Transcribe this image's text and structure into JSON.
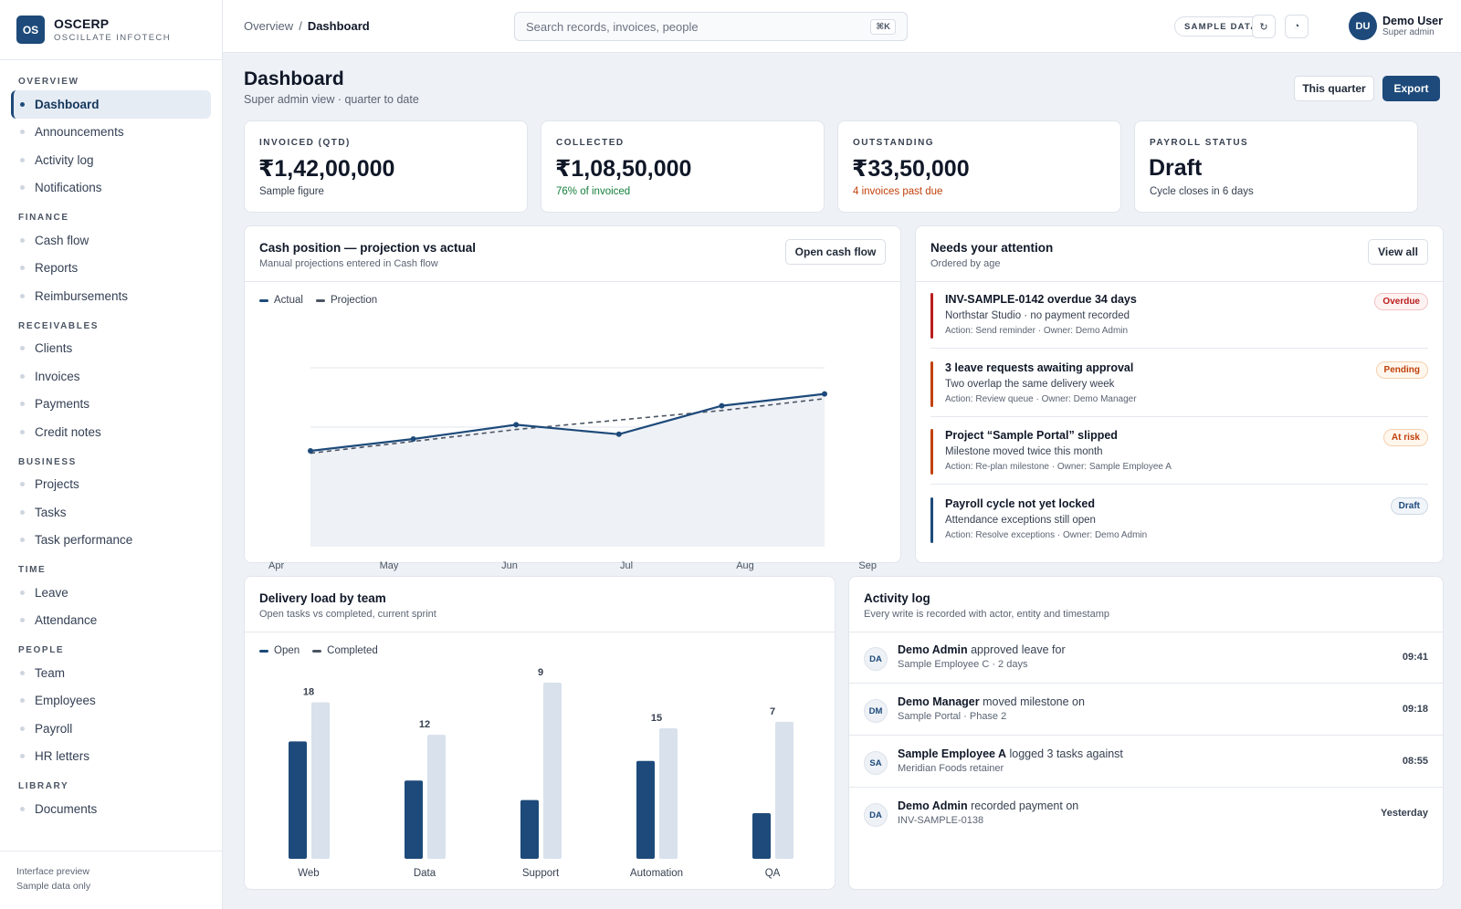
{
  "brand": {
    "logo": "OS",
    "name": "OSCERP",
    "sub": "OSCILLATE INFOTECH"
  },
  "nav": [
    {
      "section": "OVERVIEW",
      "items": [
        "Dashboard",
        "Announcements",
        "Activity log",
        "Notifications"
      ]
    },
    {
      "section": "FINANCE",
      "items": [
        "Cash flow",
        "Reports",
        "Reimbursements"
      ]
    },
    {
      "section": "RECEIVABLES",
      "items": [
        "Clients",
        "Invoices",
        "Payments",
        "Credit notes"
      ]
    },
    {
      "section": "BUSINESS",
      "items": [
        "Projects",
        "Tasks",
        "Task performance"
      ]
    },
    {
      "section": "TIME",
      "items": [
        "Leave",
        "Attendance"
      ]
    },
    {
      "section": "PEOPLE",
      "items": [
        "Team",
        "Employees",
        "Payroll",
        "HR letters"
      ]
    },
    {
      "section": "LIBRARY",
      "items": [
        "Documents"
      ]
    }
  ],
  "active_nav": "Dashboard",
  "sidebar_foot": {
    "line1": "Interface preview",
    "line2": "Sample data only"
  },
  "topbar": {
    "crumb_parent": "Overview",
    "crumb_sep": "/",
    "crumb_current": "Dashboard",
    "search_placeholder": "Search records, invoices, people",
    "search_value": "",
    "search_kbd": "⌘K",
    "sample_pill": "SAMPLE DATA",
    "refresh_icon": "↻",
    "theme_icon": "◔",
    "user_initials": "DU",
    "user_name": "Demo User",
    "user_role": "Super admin"
  },
  "page": {
    "title": "Dashboard",
    "subtitle": "Super admin view · quarter to date",
    "period_button": "This quarter",
    "export_button": "Export"
  },
  "kpis": [
    {
      "label": "INVOICED (QTD)",
      "value": "₹1,42,00,000",
      "note": "Sample figure",
      "note_color": "#374151"
    },
    {
      "label": "COLLECTED",
      "value": "₹1,08,50,000",
      "note": "76% of invoiced",
      "note_color": "#15803d"
    },
    {
      "label": "OUTSTANDING",
      "value": "₹33,50,000",
      "note": "4 invoices past due",
      "note_color": "#c2410c"
    },
    {
      "label": "PAYROLL STATUS",
      "value": "Draft",
      "note": "Cycle closes in 6 days",
      "note_color": "#374151"
    }
  ],
  "cash": {
    "title": "Cash position — projection vs actual",
    "subtitle": "Manual projections entered in Cash flow",
    "button": "Open cash flow"
  },
  "attention": {
    "title": "Needs your attention",
    "subtitle": "Ordered by age",
    "button": "View all",
    "items": [
      {
        "title": "INV-SAMPLE-0142 overdue 34 days",
        "desc": "Northstar Studio · no payment recorded",
        "action": "Action: Send reminder · Owner: Demo Admin",
        "badge": "Overdue",
        "bar": "#b91c1c",
        "badge_color": "#b91c1c",
        "badge_bg": "#fef2f2",
        "badge_border": "#f3c4c4"
      },
      {
        "title": "3 leave requests awaiting approval",
        "desc": "Two overlap the same delivery week",
        "action": "Action: Review queue · Owner: Demo Manager",
        "badge": "Pending",
        "bar": "#c2410c",
        "badge_color": "#c2410c",
        "badge_bg": "#fff7ed",
        "badge_border": "#f5cfae"
      },
      {
        "title": "Project “Sample Portal” slipped",
        "desc": "Milestone moved twice this month",
        "action": "Action: Re-plan milestone · Owner: Sample Employee A",
        "badge": "At risk",
        "bar": "#c2410c",
        "badge_color": "#c2410c",
        "badge_bg": "#fff7ed",
        "badge_border": "#f5cfae"
      },
      {
        "title": "Payroll cycle not yet locked",
        "desc": "Attendance exceptions still open",
        "action": "Action: Resolve exceptions · Owner: Demo Admin",
        "badge": "Draft",
        "bar": "#1d4a7a",
        "badge_color": "#1d4a7a",
        "badge_bg": "#f1f5fa",
        "badge_border": "#cdd8e5"
      }
    ]
  },
  "delivery": {
    "title": "Delivery load by team",
    "subtitle": "Open tasks vs completed, current sprint"
  },
  "activity": {
    "title": "Activity log",
    "subtitle": "Every write is recorded with actor, entity and timestamp",
    "rows": [
      {
        "initials": "DA",
        "actor": "Demo Admin",
        "verb": " approved leave for",
        "detail": "Sample Employee C · 2 days",
        "time": "09:41"
      },
      {
        "initials": "DM",
        "actor": "Demo Manager",
        "verb": " moved milestone on",
        "detail": "Sample Portal · Phase 2",
        "time": "09:18"
      },
      {
        "initials": "SA",
        "actor": "Sample Employee A",
        "verb": " logged 3 tasks against",
        "detail": "Meridian Foods retainer",
        "time": "08:55"
      },
      {
        "initials": "DA",
        "actor": "Demo Admin",
        "verb": " recorded payment on",
        "detail": "INV-SAMPLE-0138",
        "time": "Yesterday"
      }
    ]
  },
  "colors": {
    "accent": "#1d4a7a",
    "accent_light": "#d8e1ec"
  },
  "chart_data": [
    {
      "type": "line",
      "title": "Cash position — projection vs actual",
      "categories": [
        "Apr",
        "May",
        "Jun",
        "Jul",
        "Aug",
        "Sep"
      ],
      "series": [
        {
          "name": "Actual",
          "values": [
            40,
            45,
            51,
            47,
            59,
            64
          ]
        },
        {
          "name": "Projection",
          "values": [
            39,
            44,
            49,
            53,
            57,
            62
          ]
        }
      ],
      "ylim": [
        0,
        100
      ],
      "grid": true,
      "legend": "top-left"
    },
    {
      "type": "bar",
      "title": "Delivery load by team",
      "categories": [
        "Web",
        "Data",
        "Support",
        "Automation",
        "QA"
      ],
      "series": [
        {
          "name": "Open",
          "values": [
            18,
            12,
            9,
            15,
            7
          ]
        },
        {
          "name": "Completed",
          "values": [
            24,
            19,
            27,
            20,
            21
          ]
        }
      ],
      "data_labels": [
        "18",
        "12",
        "9",
        "15",
        "7"
      ],
      "legend": "top-left"
    }
  ]
}
